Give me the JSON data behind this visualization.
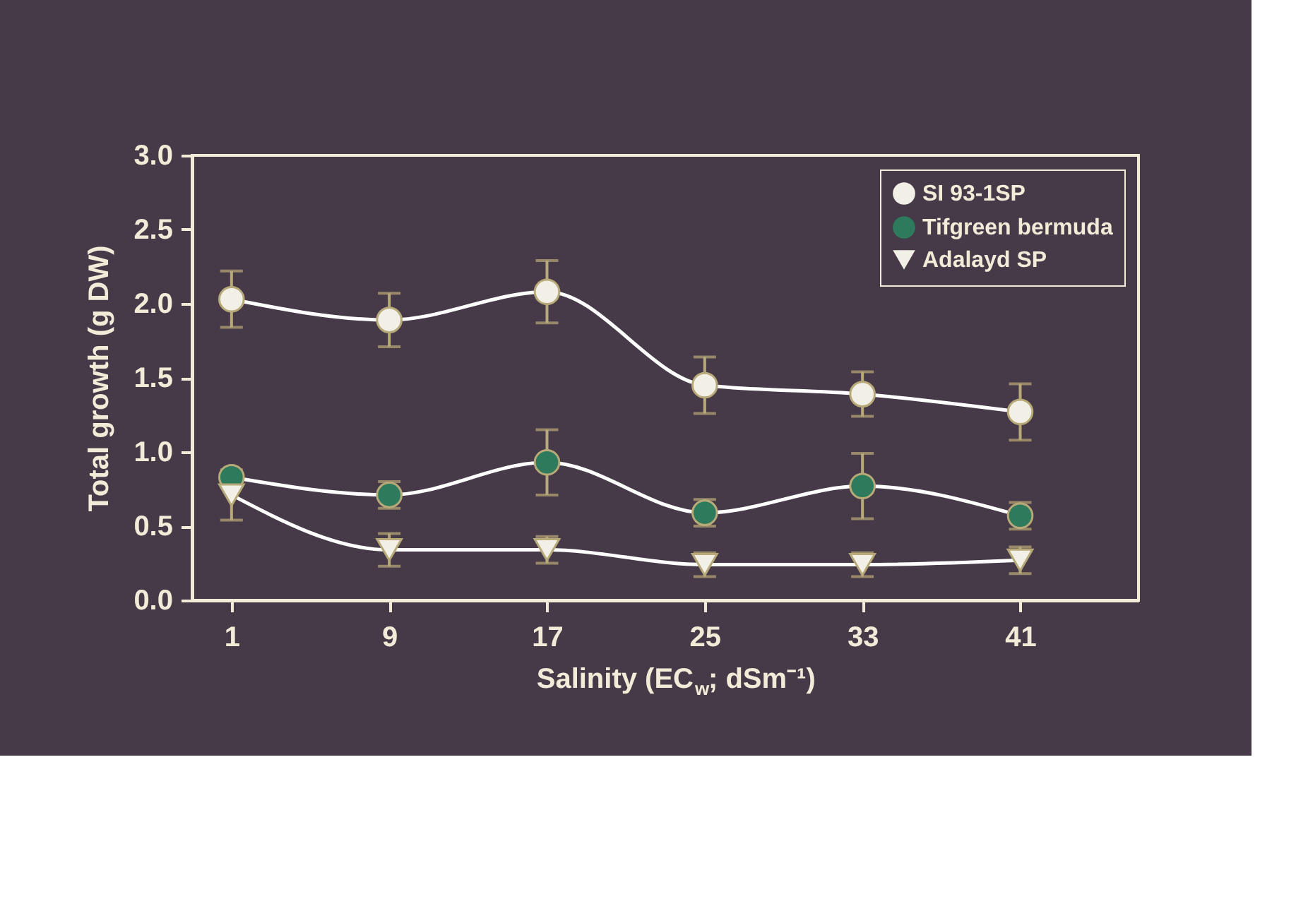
{
  "chart_data": {
    "type": "line",
    "xlabel": "Salinity (EC$_{w}$; dSm⁻¹)",
    "ylabel": "Total growth (g DW)",
    "x": [
      1,
      9,
      17,
      25,
      33,
      41
    ],
    "xlim": [
      -1,
      47
    ],
    "xticks": [
      1,
      9,
      17,
      25,
      33,
      41
    ],
    "ylim": [
      0,
      3
    ],
    "yticks": [
      {
        "value": 0,
        "label": "0.0"
      },
      {
        "value": 0.5,
        "label": "0.5"
      },
      {
        "value": 1,
        "label": "1.0"
      },
      {
        "value": 1.5,
        "label": "1.5"
      },
      {
        "value": 2,
        "label": "2.0"
      },
      {
        "value": 2.5,
        "label": "2.5"
      },
      {
        "value": 3,
        "label": "3.0"
      }
    ],
    "grid": false,
    "legend": "top right",
    "line_style": "solid",
    "series": [
      {
        "name": "SI 93-1SP",
        "color": "#f2f0e6",
        "marker": "circle",
        "values": [
          2.03,
          1.89,
          2.08,
          1.45,
          1.39,
          1.27
        ],
        "errors": [
          0.19,
          0.18,
          0.21,
          0.19,
          0.15,
          0.19
        ]
      },
      {
        "name": "Tifgreen bermuda",
        "color": "#2e7a5c",
        "marker": "circle",
        "values": [
          0.83,
          0.71,
          0.93,
          0.59,
          0.77,
          0.57
        ],
        "errors": [
          null,
          0.09,
          0.22,
          0.09,
          0.22,
          0.09
        ]
      },
      {
        "name": "Adalayd SP",
        "color": "#f2f0e6",
        "marker": "triangle",
        "values": [
          0.71,
          0.34,
          0.34,
          0.24,
          0.24,
          0.27
        ],
        "errors": [
          0.17,
          0.11,
          0.09,
          0.08,
          0.08,
          0.09
        ]
      }
    ]
  }
}
